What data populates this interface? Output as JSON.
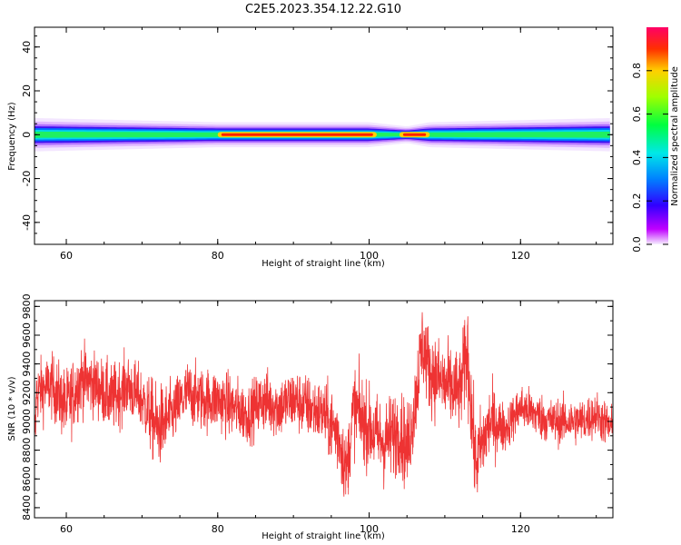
{
  "title": "C2E5.2023.354.12.22.G10",
  "chart_data": [
    {
      "type": "heatmap",
      "xlabel": "Height of straight line (km)",
      "ylabel": "Frequency (Hz)",
      "xlim": [
        55.8,
        132.2
      ],
      "ylim": [
        -50,
        49
      ],
      "xticks": [
        "60",
        "80",
        "100",
        "120"
      ],
      "yticks": [
        "40",
        "20",
        "0",
        "-20",
        "-40"
      ],
      "band": {
        "center_hz": 0,
        "half_width_hz": [
          [
            56,
            4
          ],
          [
            80,
            3
          ],
          [
            100,
            3
          ],
          [
            105,
            2
          ],
          [
            108,
            3
          ],
          [
            132,
            4
          ]
        ]
      },
      "peak_ranges_km": [
        [
          80,
          101
        ],
        [
          104,
          108
        ]
      ],
      "colorbar": {
        "label": "Normalized spectral amplitude",
        "ticks": [
          "0.0",
          "0.2",
          "0.4",
          "0.6",
          "0.8"
        ],
        "range": [
          0,
          1
        ]
      }
    },
    {
      "type": "line",
      "xlabel": "Height of straight line (km)",
      "ylabel": "SNR (10 * v/v)",
      "xlim": [
        55.8,
        132.2
      ],
      "ylim": [
        8330,
        9840
      ],
      "xticks": [
        "60",
        "80",
        "100",
        "120"
      ],
      "yticks": [
        "8400",
        "8600",
        "8800",
        "9000",
        "9200",
        "9400",
        "9600",
        "9800"
      ],
      "color": "#ee3333",
      "series": [
        {
          "x": [
            56,
            58,
            60,
            62,
            64,
            66,
            68,
            70,
            72,
            74,
            76,
            78,
            80,
            82,
            84,
            86,
            88,
            90,
            92,
            94,
            96,
            97,
            98,
            100,
            102,
            104,
            105,
            106,
            107,
            108,
            110,
            112,
            113,
            114,
            116,
            118,
            120,
            122,
            124,
            126,
            128,
            130,
            132
          ],
          "y": [
            9200,
            9250,
            9100,
            9300,
            9250,
            9150,
            9250,
            9150,
            8950,
            9050,
            9200,
            9150,
            9150,
            9100,
            9050,
            9150,
            9100,
            9150,
            9100,
            9050,
            8900,
            8650,
            9100,
            8950,
            8850,
            8950,
            8800,
            9100,
            9550,
            9350,
            9250,
            9200,
            9500,
            8700,
            9000,
            8950,
            9100,
            9050,
            9000,
            9000,
            9000,
            9050,
            8950
          ],
          "noise_sd": [
            110,
            110,
            130,
            120,
            110,
            120,
            110,
            110,
            150,
            110,
            110,
            110,
            110,
            110,
            100,
            110,
            110,
            110,
            110,
            110,
            150,
            120,
            150,
            140,
            150,
            150,
            150,
            140,
            150,
            140,
            150,
            140,
            180,
            150,
            130,
            80,
            80,
            80,
            80,
            80,
            80,
            80,
            80
          ]
        }
      ]
    }
  ]
}
